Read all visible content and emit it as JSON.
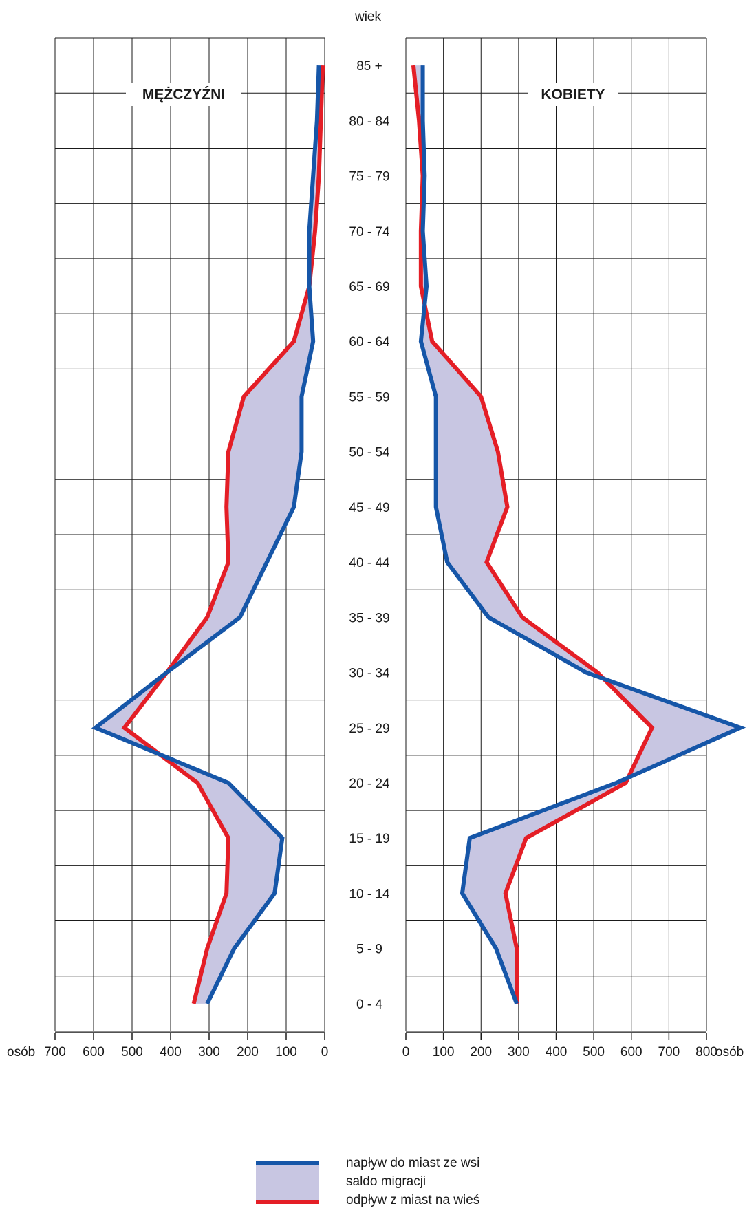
{
  "chart_data": {
    "type": "line",
    "age_axis_label": "wiek",
    "unit_label": "osób",
    "age_groups": [
      "0 - 4",
      "5 - 9",
      "10 - 14",
      "15 - 19",
      "20 - 24",
      "25 - 29",
      "30 - 34",
      "35 - 39",
      "40 - 44",
      "45 - 49",
      "50 - 54",
      "55 - 59",
      "60 - 64",
      "65 - 69",
      "70 - 74",
      "75 - 79",
      "80 - 84",
      "85 +"
    ],
    "panels": [
      {
        "title": "MĘŻCZYŹNI",
        "side": "left",
        "xlim": [
          0,
          700
        ],
        "ticks": [
          700,
          600,
          500,
          400,
          300,
          200,
          100,
          0
        ],
        "series": [
          {
            "key": "inflow",
            "values": [
              305,
              235,
              130,
              110,
              250,
              595,
              410,
              220,
              150,
              80,
              60,
              60,
              30,
              40,
              40,
              30,
              20,
              15
            ]
          },
          {
            "key": "outflow",
            "values": [
              340,
              305,
              255,
              250,
              330,
              520,
              410,
              305,
              250,
              255,
              250,
              210,
              80,
              40,
              25,
              15,
              10,
              5
            ]
          }
        ]
      },
      {
        "title": "KOBIETY",
        "side": "right",
        "xlim": [
          0,
          800
        ],
        "ticks": [
          0,
          100,
          200,
          300,
          400,
          500,
          600,
          700,
          800
        ],
        "series": [
          {
            "key": "inflow",
            "values": [
              295,
              240,
              150,
              170,
              560,
              890,
              480,
              220,
              110,
              80,
              80,
              80,
              40,
              55,
              45,
              50,
              45,
              45
            ]
          },
          {
            "key": "outflow",
            "values": [
              295,
              295,
              265,
              320,
              585,
              655,
              510,
              310,
              215,
              270,
              245,
              200,
              70,
              40,
              40,
              45,
              35,
              20
            ]
          }
        ]
      }
    ],
    "legend": [
      {
        "key": "inflow",
        "label": "napływ do miast  ze wsi",
        "color": "#1656a8"
      },
      {
        "key": "saldo",
        "label": "saldo migracji",
        "color": "#c8c6e2"
      },
      {
        "key": "outflow",
        "label": "odpływ z miast na wieś",
        "color": "#e41e26"
      }
    ],
    "colors": {
      "inflow": "#1656a8",
      "outflow": "#e41e26",
      "saldo": "#c8c6e2",
      "grid": "#1a1a1a"
    }
  }
}
